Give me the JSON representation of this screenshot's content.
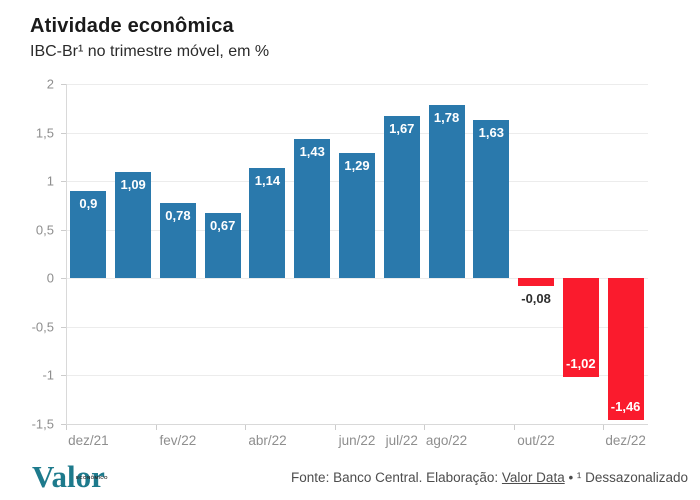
{
  "header": {
    "title": "Atividade econômica",
    "subtitle": "IBC-Br¹ no trimestre móvel, em %"
  },
  "footer": {
    "logo_text": "Valor",
    "logo_sup": "ECONÔMICO",
    "source_prefix": "Fonte: Banco Central. Elaboração: ",
    "source_link": "Valor Data",
    "source_suffix": " • ¹ Dessazonalizado"
  },
  "chart_data": {
    "type": "bar",
    "title": "Atividade econômica",
    "subtitle": "IBC-Br¹ no trimestre móvel, em %",
    "values": [
      0.9,
      1.09,
      0.78,
      0.67,
      1.14,
      1.43,
      1.29,
      1.67,
      1.78,
      1.63,
      -0.08,
      -1.02,
      -1.46
    ],
    "value_labels": [
      "0,9",
      "1,09",
      "0,78",
      "0,67",
      "1,14",
      "1,43",
      "1,29",
      "1,67",
      "1,78",
      "1,63",
      "-0,08",
      "-1,02",
      "-1,46"
    ],
    "x_tick_labels": [
      "dez/21",
      "",
      "fev/22",
      "",
      "abr/22",
      "",
      "jun/22",
      "jul/22",
      "ago/22",
      "",
      "out/22",
      "",
      "dez/22"
    ],
    "y_ticks": [
      2,
      1.5,
      1,
      0.5,
      0,
      -0.5,
      -1,
      -1.5
    ],
    "y_tick_labels": [
      "2",
      "1,5",
      "1",
      "0,5",
      "0",
      "-0,5",
      "-1",
      "-1,5"
    ],
    "ylim": [
      -1.5,
      2
    ],
    "grid": true,
    "legend": false,
    "bar_color_positive": "#2a79ac",
    "bar_color_negative": "#fa1b2d",
    "axis_color": "#d9d9d9",
    "grid_color": "#ececec",
    "tick_label_color": "#8e8e8e",
    "source": "Fonte: Banco Central. Elaboração: Valor Data • ¹ Dessazonalizado"
  }
}
